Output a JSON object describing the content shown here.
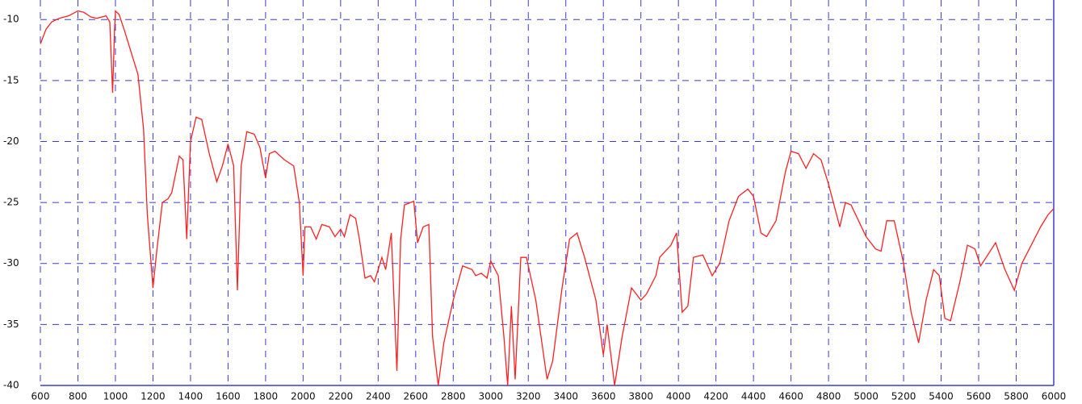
{
  "chart_data": {
    "type": "line",
    "xlim": [
      600,
      6000
    ],
    "ylim": [
      -40,
      -8.4
    ],
    "xticks": [
      600,
      800,
      1000,
      1200,
      1400,
      1600,
      1800,
      2000,
      2200,
      2400,
      2600,
      2800,
      3000,
      3200,
      3400,
      3600,
      3800,
      4000,
      4200,
      4400,
      4600,
      4800,
      5000,
      5200,
      5400,
      5600,
      5800,
      6000
    ],
    "yticks": [
      -10,
      -15,
      -20,
      -25,
      -30,
      -35,
      -40
    ],
    "grid": true,
    "grid_color": "#3a3ad8",
    "series": [
      {
        "color": "#ff2020",
        "x": [
          600,
          630,
          660,
          700,
          750,
          800,
          830,
          870,
          900,
          950,
          970,
          985,
          995,
          1000,
          1020,
          1050,
          1100,
          1120,
          1150,
          1170,
          1190,
          1200,
          1220,
          1250,
          1280,
          1300,
          1340,
          1360,
          1380,
          1400,
          1430,
          1460,
          1500,
          1540,
          1570,
          1600,
          1630,
          1650,
          1670,
          1700,
          1740,
          1770,
          1800,
          1820,
          1850,
          1900,
          1950,
          1980,
          2000,
          2010,
          2040,
          2070,
          2100,
          2140,
          2170,
          2200,
          2220,
          2250,
          2280,
          2300,
          2330,
          2360,
          2380,
          2420,
          2440,
          2470,
          2500,
          2520,
          2540,
          2590,
          2610,
          2640,
          2670,
          2690,
          2720,
          2750,
          2800,
          2850,
          2900,
          2920,
          2950,
          2980,
          3000,
          3040,
          3070,
          3090,
          3110,
          3130,
          3160,
          3190,
          3240,
          3300,
          3330,
          3380,
          3420,
          3460,
          3500,
          3560,
          3600,
          3620,
          3640,
          3660,
          3700,
          3750,
          3800,
          3830,
          3880,
          3900,
          3960,
          3990,
          4020,
          4050,
          4080,
          4130,
          4180,
          4220,
          4270,
          4320,
          4370,
          4400,
          4440,
          4470,
          4520,
          4570,
          4600,
          4640,
          4680,
          4720,
          4760,
          4800,
          4860,
          4890,
          4920,
          4960,
          5000,
          5050,
          5080,
          5110,
          5150,
          5200,
          5240,
          5280,
          5320,
          5360,
          5390,
          5420,
          5450,
          5500,
          5540,
          5580,
          5610,
          5640,
          5690,
          5740,
          5790,
          5830,
          5880,
          5930,
          5970,
          6000
        ],
        "values": [
          -12,
          -10.8,
          -10.2,
          -9.9,
          -9.7,
          -9.3,
          -9.4,
          -9.8,
          -9.9,
          -9.7,
          -10.2,
          -16,
          -11,
          -9.3,
          -9.6,
          -11,
          -13.5,
          -14.5,
          -19,
          -26,
          -30,
          -32,
          -29,
          -25,
          -24.7,
          -24.2,
          -21.2,
          -21.5,
          -28,
          -20,
          -18,
          -18.2,
          -21,
          -23.3,
          -22,
          -20.2,
          -22,
          -32.2,
          -22,
          -19.2,
          -19.4,
          -20.5,
          -23,
          -21,
          -20.8,
          -21.5,
          -22,
          -25,
          -31,
          -27,
          -27,
          -28,
          -26.8,
          -27,
          -27.8,
          -27.2,
          -27.8,
          -26,
          -26.3,
          -28,
          -31.2,
          -31,
          -31.5,
          -29.5,
          -30.5,
          -27.5,
          -38.8,
          -28,
          -25.2,
          -24.9,
          -28.3,
          -27,
          -26.8,
          -36,
          -40,
          -36.5,
          -33,
          -30.2,
          -30.5,
          -31,
          -30.8,
          -31.2,
          -29.8,
          -31,
          -36,
          -40,
          -33.5,
          -39.5,
          -29.5,
          -29.5,
          -33,
          -39.5,
          -38,
          -32,
          -28,
          -27.5,
          -29.5,
          -33,
          -37.5,
          -35,
          -37.5,
          -40,
          -36,
          -32,
          -33,
          -32.5,
          -31,
          -29.5,
          -28.5,
          -27.5,
          -34,
          -33.5,
          -29.5,
          -29.3,
          -31,
          -30,
          -26.5,
          -24.5,
          -23.9,
          -24.5,
          -27.5,
          -27.8,
          -26.5,
          -22.5,
          -20.8,
          -21,
          -22.2,
          -21,
          -21.5,
          -23.5,
          -27,
          -25,
          -25.2,
          -26.5,
          -27.8,
          -28.8,
          -29,
          -26.5,
          -26.5,
          -30,
          -34,
          -36.5,
          -33,
          -30.5,
          -31,
          -34.5,
          -34.7,
          -31.5,
          -28.5,
          -28.8,
          -30.2,
          -29.5,
          -28.3,
          -30.5,
          -32.2,
          -30,
          -28.5,
          -27,
          -26,
          -25.5
        ]
      }
    ]
  }
}
